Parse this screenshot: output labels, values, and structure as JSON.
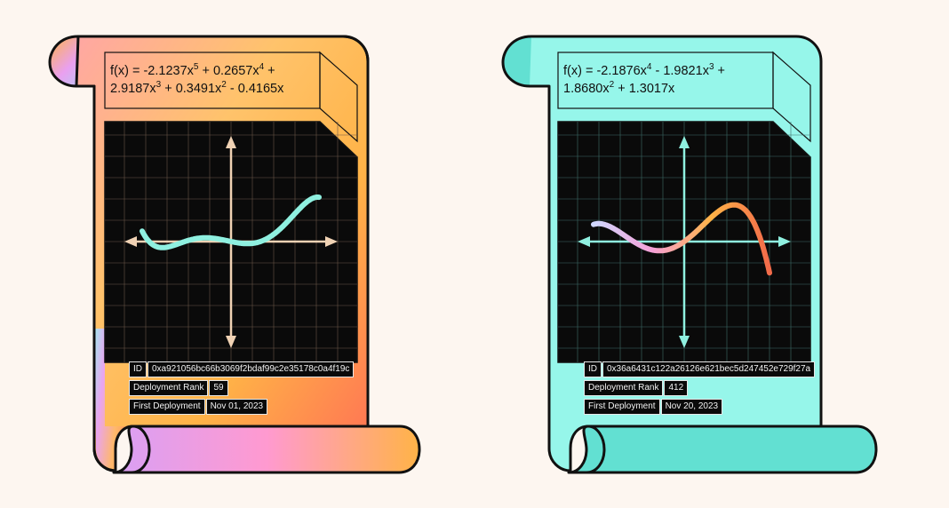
{
  "cards": [
    {
      "theme": "sunset",
      "formula": [
        {
          "t": "f(x) = -2.1237x"
        },
        {
          "sup": "5"
        },
        {
          "t": " + 0.2657x"
        },
        {
          "sup": "4"
        },
        {
          "t": " +"
        },
        {
          "br": true
        },
        {
          "t": "2.9187x"
        },
        {
          "sup": "3"
        },
        {
          "t": " + 0.3491x"
        },
        {
          "sup": "2"
        },
        {
          "t": " - 0.4165x"
        }
      ],
      "coefficients": [
        -2.1237,
        0.2657,
        2.9187,
        0.3491,
        -0.4165,
        0
      ],
      "curve_color": "#8ff0e0",
      "axis_color": "#f0d2b4",
      "grid_color": "#6a5648",
      "id_label": "ID",
      "id_value": "0xa921056bc66b3069f2bdaf99c2e35178c0a4f19c",
      "rank_label": "Deployment Rank",
      "rank_value": "59",
      "deploy_label": "First Deployment",
      "deploy_value": "Nov 01, 2023"
    },
    {
      "theme": "mint",
      "formula": [
        {
          "t": "f(x) = -2.1876x"
        },
        {
          "sup": "4"
        },
        {
          "t": " - 1.9821x"
        },
        {
          "sup": "3"
        },
        {
          "t": " +"
        },
        {
          "br": true
        },
        {
          "t": "1.8680x"
        },
        {
          "sup": "2"
        },
        {
          "t": " + 1.3017x"
        }
      ],
      "coefficients": [
        -2.1876,
        -1.9821,
        1.868,
        1.3017,
        0
      ],
      "curve_gradient": [
        "#cfd8ff",
        "#f5a0d8",
        "#ffb347",
        "#f26b4a"
      ],
      "axis_color": "#8ff0e0",
      "grid_color": "#3f6d68",
      "id_label": "ID",
      "id_value": "0x36a6431c122a26126e621bec5d247452e729f27a",
      "rank_label": "Deployment Rank",
      "rank_value": "412",
      "deploy_label": "First Deployment",
      "deploy_value": "Nov 20, 2023"
    }
  ]
}
